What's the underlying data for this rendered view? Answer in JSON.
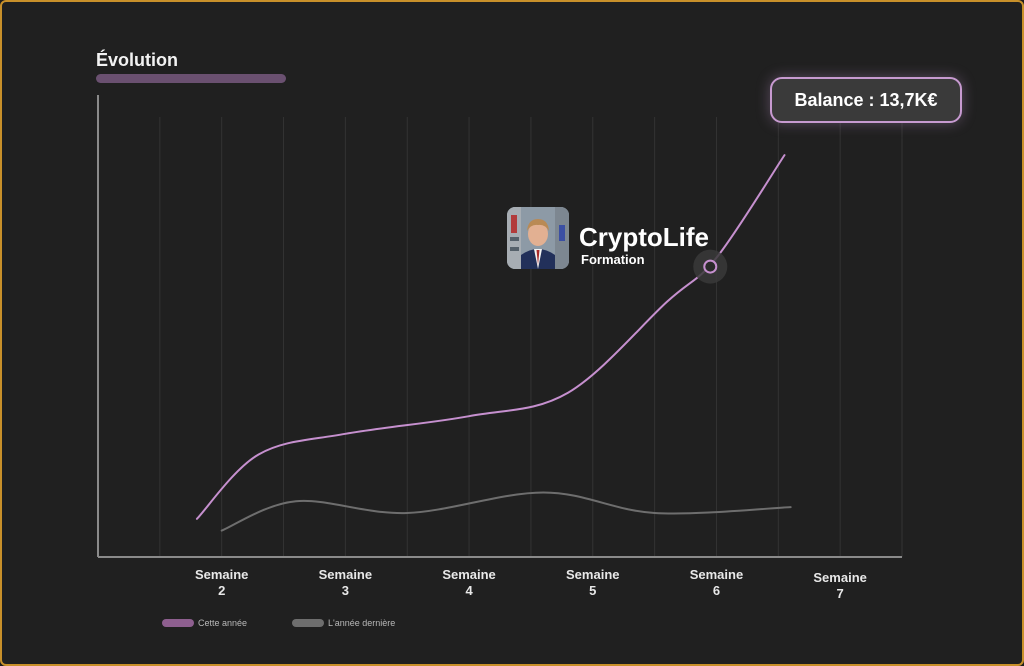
{
  "header": {
    "title": "Évolution"
  },
  "balance": {
    "label": "Balance : 13,7K€"
  },
  "brand": {
    "name": "CryptoLife",
    "subtitle": "Formation"
  },
  "colors": {
    "this_year": "#c690cf",
    "last_year": "#6e6e6e",
    "frame": "#c8902a",
    "background": "#202020"
  },
  "chart_data": {
    "type": "line",
    "categories": [
      "Semaine 2",
      "Semaine 3",
      "Semaine 4",
      "Semaine 5",
      "Semaine 6",
      "Semaine 7"
    ],
    "x_labels": [
      [
        "Semaine",
        "2"
      ],
      [
        "Semaine",
        "3"
      ],
      [
        "Semaine",
        "4"
      ],
      [
        "Semaine",
        "5"
      ],
      [
        "Semaine",
        "6"
      ],
      [
        "Semaine",
        "7"
      ]
    ],
    "series": [
      {
        "name": "Cette année",
        "color": "#c690cf",
        "points": [
          [
            1.8,
            1.3
          ],
          [
            2.3,
            3.5
          ],
          [
            3.0,
            4.2
          ],
          [
            4.0,
            4.8
          ],
          [
            4.8,
            5.6
          ],
          [
            5.6,
            8.7
          ],
          [
            6.0,
            10.2
          ],
          [
            6.55,
            13.7
          ]
        ],
        "highlight": [
          5.95,
          9.9
        ]
      },
      {
        "name": "L'année dernière",
        "color": "#6e6e6e",
        "points": [
          [
            2.0,
            0.9
          ],
          [
            2.6,
            1.9
          ],
          [
            3.5,
            1.5
          ],
          [
            4.6,
            2.2
          ],
          [
            5.5,
            1.5
          ],
          [
            6.6,
            1.7
          ]
        ]
      }
    ],
    "xlim": [
      1.0,
      7.5
    ],
    "ylim": [
      0,
      15
    ],
    "grid": true,
    "legend": "bottom-left"
  }
}
